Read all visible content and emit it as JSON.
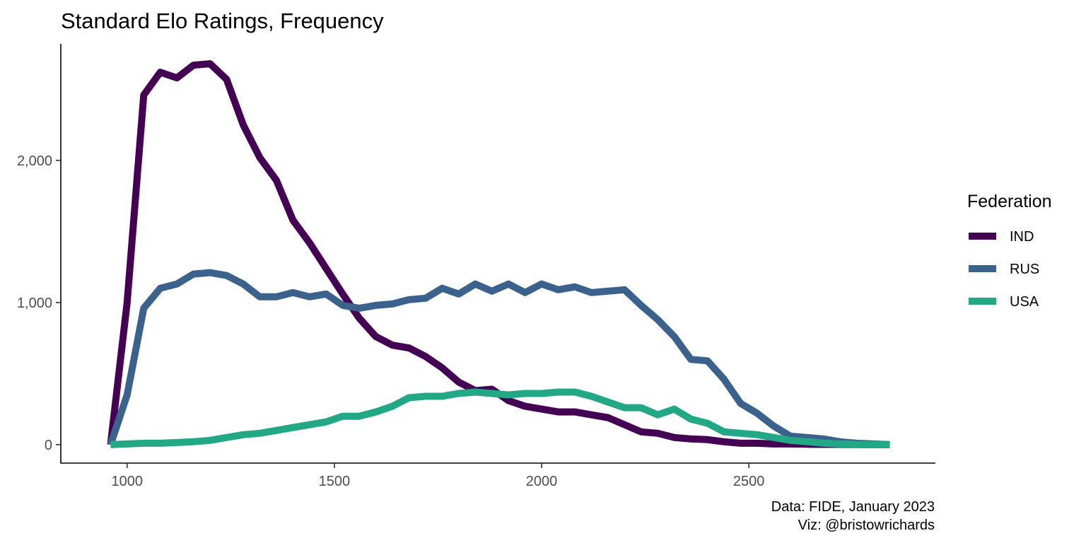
{
  "chart_data": {
    "type": "line",
    "title": "Standard Elo Ratings, Frequency",
    "xlabel": "",
    "ylabel": "",
    "xlim": [
      840,
      2950
    ],
    "ylim": [
      -130,
      2820
    ],
    "x_ticks": [
      {
        "value": 1000,
        "label": "1000"
      },
      {
        "value": 1500,
        "label": "1500"
      },
      {
        "value": 2000,
        "label": "2000"
      },
      {
        "value": 2500,
        "label": "2500"
      }
    ],
    "y_ticks": [
      {
        "value": 0,
        "label": "0"
      },
      {
        "value": 1000,
        "label": "1,000"
      },
      {
        "value": 2000,
        "label": "2,000"
      }
    ],
    "grid": false,
    "legend": {
      "title": "Federation",
      "position": "right"
    },
    "x": [
      960,
      1000,
      1040,
      1080,
      1120,
      1160,
      1200,
      1240,
      1280,
      1320,
      1360,
      1400,
      1440,
      1480,
      1520,
      1560,
      1600,
      1640,
      1680,
      1720,
      1760,
      1800,
      1840,
      1880,
      1920,
      1960,
      2000,
      2040,
      2080,
      2120,
      2160,
      2200,
      2240,
      2280,
      2320,
      2360,
      2400,
      2440,
      2480,
      2520,
      2560,
      2600,
      2640,
      2680,
      2720,
      2760,
      2800,
      2840
    ],
    "series": [
      {
        "name": "IND",
        "color": "#440154",
        "values": [
          0,
          1000,
          2460,
          2620,
          2580,
          2670,
          2680,
          2570,
          2250,
          2020,
          1860,
          1580,
          1420,
          1240,
          1060,
          890,
          760,
          700,
          680,
          620,
          540,
          440,
          380,
          390,
          310,
          270,
          250,
          230,
          230,
          210,
          190,
          140,
          90,
          80,
          50,
          40,
          35,
          20,
          10,
          10,
          5,
          5,
          3,
          2,
          2,
          1,
          0,
          0
        ]
      },
      {
        "name": "RUS",
        "color": "#3b628d",
        "values": [
          0,
          350,
          960,
          1100,
          1130,
          1200,
          1210,
          1190,
          1130,
          1040,
          1040,
          1070,
          1040,
          1060,
          980,
          960,
          980,
          990,
          1020,
          1030,
          1100,
          1060,
          1130,
          1080,
          1130,
          1070,
          1130,
          1090,
          1110,
          1070,
          1080,
          1090,
          980,
          880,
          760,
          600,
          590,
          460,
          290,
          220,
          130,
          60,
          50,
          40,
          20,
          10,
          5,
          0
        ]
      },
      {
        "name": "USA",
        "color": "#22a884",
        "values": [
          0,
          5,
          10,
          10,
          15,
          20,
          30,
          50,
          70,
          80,
          100,
          120,
          140,
          160,
          200,
          200,
          230,
          270,
          330,
          340,
          340,
          360,
          370,
          360,
          350,
          360,
          360,
          370,
          370,
          340,
          300,
          260,
          260,
          210,
          250,
          180,
          150,
          90,
          80,
          70,
          50,
          30,
          20,
          10,
          5,
          2,
          0,
          0
        ]
      }
    ],
    "caption": [
      "Data: FIDE, January 2023",
      "Viz: @bristowrichards"
    ]
  }
}
